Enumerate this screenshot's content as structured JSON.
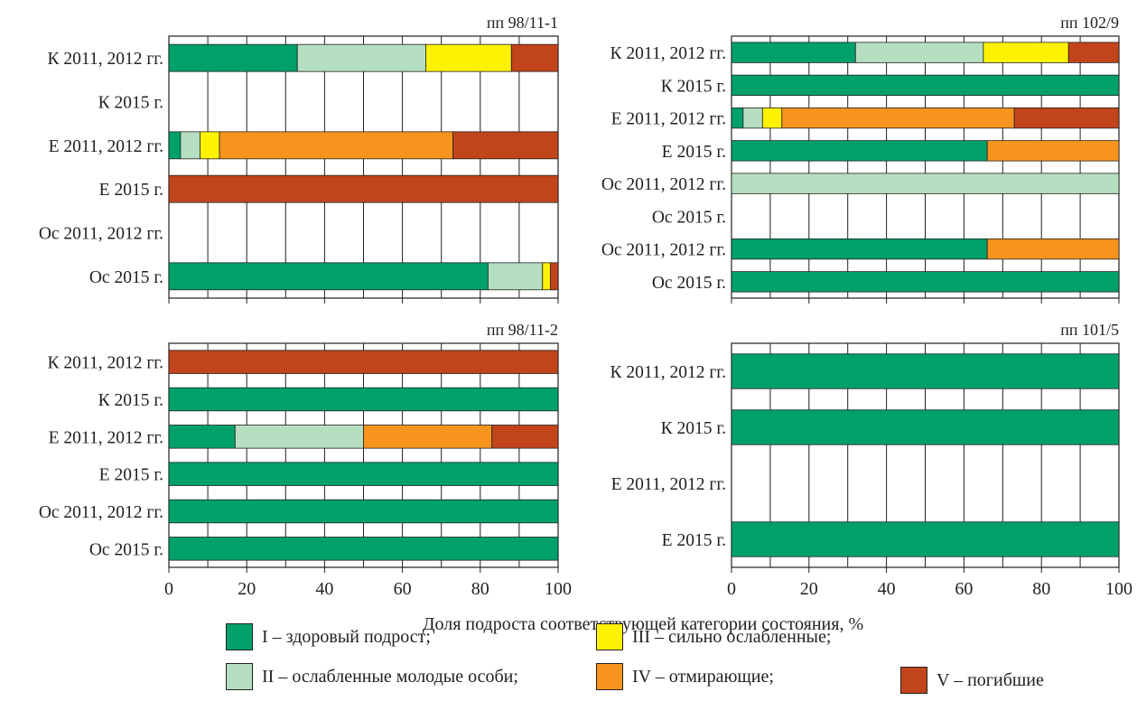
{
  "axis_label": "Доля подроста соответствующей категории состояния, %",
  "colors": {
    "I": "#00a06a",
    "II": "#b5dfc0",
    "III": "#fff200",
    "IV": "#f7941d",
    "V": "#c1441b"
  },
  "legend": [
    {
      "key": "I",
      "label": "I – здоровый подрост;"
    },
    {
      "key": "II",
      "label": "II – ослабленные молодые особи;"
    },
    {
      "key": "III",
      "label": "III – сильно ослабленные;"
    },
    {
      "key": "IV",
      "label": "IV – отмирающие;"
    },
    {
      "key": "V",
      "label": "V – погибшие"
    }
  ],
  "chart_data": [
    {
      "type": "bar",
      "stacked": true,
      "orientation": "horizontal",
      "title": "пп 98/11-1",
      "xlim": [
        0,
        100
      ],
      "xticks": [
        0,
        20,
        40,
        60,
        80,
        100
      ],
      "grid": "vertical every 10",
      "categories": [
        "К 2011, 2012 гг.",
        "К 2015 г.",
        "Е 2011, 2012 гг.",
        "Е 2015 г.",
        "Ос 2011, 2012 гг.",
        "Ос 2015 г."
      ],
      "series": [
        {
          "key": "I",
          "values": [
            33,
            0,
            3,
            0,
            0,
            82
          ]
        },
        {
          "key": "II",
          "values": [
            33,
            0,
            5,
            0,
            0,
            14
          ]
        },
        {
          "key": "III",
          "values": [
            22,
            0,
            5,
            0,
            0,
            2
          ]
        },
        {
          "key": "IV",
          "values": [
            0,
            0,
            60,
            0,
            0,
            0
          ]
        },
        {
          "key": "V",
          "values": [
            12,
            0,
            27,
            100,
            0,
            2
          ]
        }
      ]
    },
    {
      "type": "bar",
      "stacked": true,
      "orientation": "horizontal",
      "title": "пп 102/9",
      "xlim": [
        0,
        100
      ],
      "xticks": [
        0,
        20,
        40,
        60,
        80,
        100
      ],
      "grid": "vertical every 10",
      "categories": [
        "К 2011, 2012 гг.",
        "К 2015 г.",
        "Е 2011, 2012 гг.",
        "Е 2015 г.",
        "Ос 2011, 2012 гг.",
        "Ос 2015 г.",
        "Ос 2011, 2012 гг.",
        "Ос 2015 г."
      ],
      "series": [
        {
          "key": "I",
          "values": [
            32,
            100,
            3,
            66,
            0,
            0,
            66,
            100
          ]
        },
        {
          "key": "II",
          "values": [
            33,
            0,
            5,
            0,
            100,
            0,
            0,
            0
          ]
        },
        {
          "key": "III",
          "values": [
            22,
            0,
            5,
            0,
            0,
            0,
            0,
            0
          ]
        },
        {
          "key": "IV",
          "values": [
            0,
            0,
            60,
            34,
            0,
            0,
            34,
            0
          ]
        },
        {
          "key": "V",
          "values": [
            13,
            0,
            27,
            0,
            0,
            0,
            0,
            0
          ]
        }
      ]
    },
    {
      "type": "bar",
      "stacked": true,
      "orientation": "horizontal",
      "title": "пп 98/11-2",
      "xlim": [
        0,
        100
      ],
      "xticks": [
        0,
        20,
        40,
        60,
        80,
        100
      ],
      "grid": "vertical every 10",
      "categories": [
        "К 2011, 2012 гг.",
        "К 2015 г.",
        "Е 2011, 2012 гг.",
        "Е 2015 г.",
        "Ос 2011, 2012 гг.",
        "Ос 2015 г."
      ],
      "series": [
        {
          "key": "I",
          "values": [
            0,
            100,
            17,
            100,
            100,
            100
          ]
        },
        {
          "key": "II",
          "values": [
            0,
            0,
            33,
            0,
            0,
            0
          ]
        },
        {
          "key": "III",
          "values": [
            0,
            0,
            0,
            0,
            0,
            0
          ]
        },
        {
          "key": "IV",
          "values": [
            0,
            0,
            33,
            0,
            0,
            0
          ]
        },
        {
          "key": "V",
          "values": [
            100,
            0,
            17,
            0,
            0,
            0
          ]
        }
      ]
    },
    {
      "type": "bar",
      "stacked": true,
      "orientation": "horizontal",
      "title": "пп 101/5",
      "xlim": [
        0,
        100
      ],
      "xticks": [
        0,
        20,
        40,
        60,
        80,
        100
      ],
      "grid": "vertical every 10",
      "categories": [
        "К 2011, 2012 гг.",
        "К 2015 г.",
        "Е 2011, 2012 гг.",
        "Е 2015 г."
      ],
      "series": [
        {
          "key": "I",
          "values": [
            100,
            100,
            0,
            100
          ]
        },
        {
          "key": "II",
          "values": [
            0,
            0,
            0,
            0
          ]
        },
        {
          "key": "III",
          "values": [
            0,
            0,
            0,
            0
          ]
        },
        {
          "key": "IV",
          "values": [
            0,
            0,
            0,
            0
          ]
        },
        {
          "key": "V",
          "values": [
            0,
            0,
            0,
            0
          ]
        }
      ]
    }
  ]
}
